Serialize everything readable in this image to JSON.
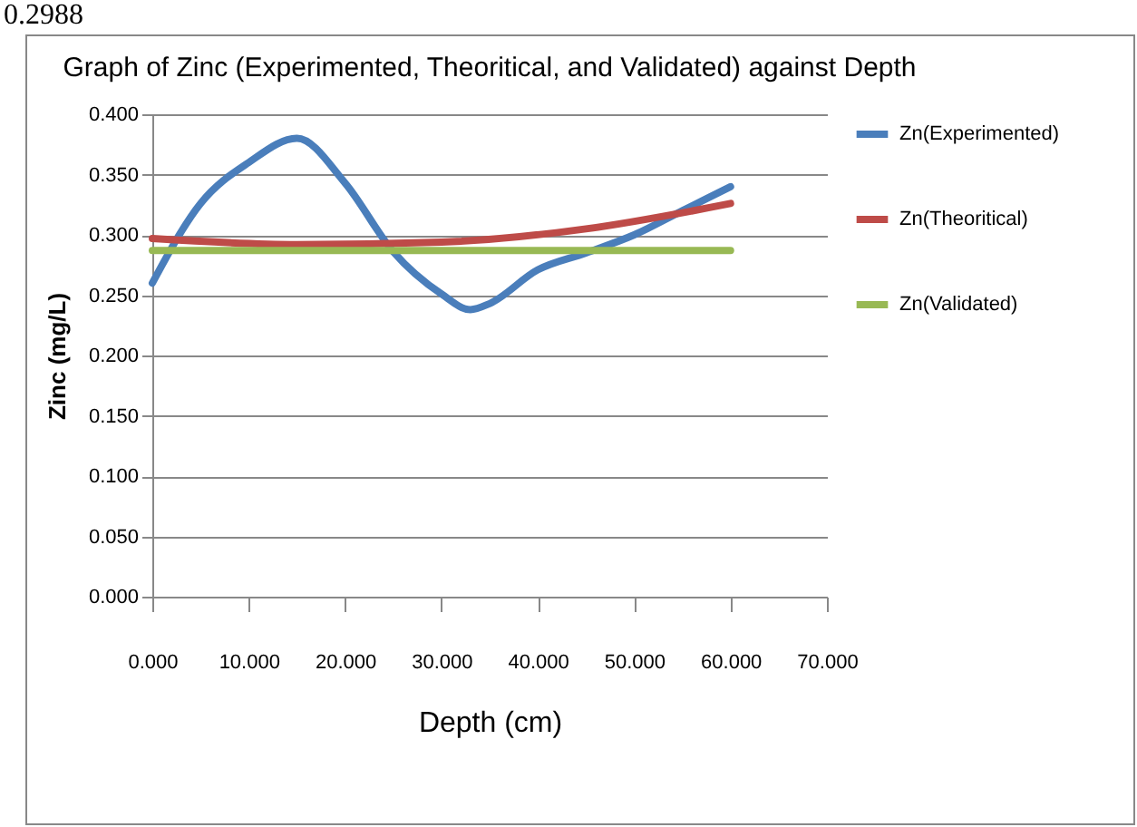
{
  "chart_data": {
    "type": "line",
    "title": "Graph of Zinc (Experimented, Theoritical, and Validated) against Depth",
    "xlabel": "Depth (cm)",
    "ylabel": "Zinc  (mg/L)",
    "annotations": [
      "0.2988"
    ],
    "series": [
      {
        "name": "Zn(Experimented)",
        "color": "#4a7ebb",
        "x": [
          0,
          5,
          10,
          15,
          20,
          25,
          30,
          33,
          35,
          40,
          45,
          50,
          55,
          60
        ],
        "values": [
          0.26,
          0.326,
          0.36,
          0.38,
          0.343,
          0.286,
          0.251,
          0.238,
          0.243,
          0.271,
          0.285,
          0.3,
          0.32,
          0.34
        ]
      },
      {
        "name": "Zn(Theoritical)",
        "color": "#be4b48",
        "x": [
          0,
          15,
          30,
          45,
          60
        ],
        "values": [
          0.297,
          0.292,
          0.294,
          0.305,
          0.326
        ]
      },
      {
        "name": "Zn(Validated)",
        "color": "#98b954",
        "x": [
          0,
          60
        ],
        "values": [
          0.287,
          0.287
        ]
      }
    ],
    "xlim": [
      0,
      70
    ],
    "xticks": [
      {
        "value": 0,
        "label": "0.000"
      },
      {
        "value": 10,
        "label": "10.000"
      },
      {
        "value": 20,
        "label": "20.000"
      },
      {
        "value": 30,
        "label": "30.000"
      },
      {
        "value": 40,
        "label": "40.000"
      },
      {
        "value": 50,
        "label": "50.000"
      },
      {
        "value": 60,
        "label": "60.000"
      },
      {
        "value": 70,
        "label": "70.000"
      }
    ],
    "ylim": [
      0,
      0.4
    ],
    "yticks": [
      {
        "value": 0,
        "label": "0.000"
      },
      {
        "value": 0.05,
        "label": "0.050"
      },
      {
        "value": 0.1,
        "label": "0.100"
      },
      {
        "value": 0.15,
        "label": "0.150"
      },
      {
        "value": 0.2,
        "label": "0.200"
      },
      {
        "value": 0.25,
        "label": "0.250"
      },
      {
        "value": 0.3,
        "label": "0.300"
      },
      {
        "value": 0.35,
        "label": "0.350"
      },
      {
        "value": 0.4,
        "label": "0.400"
      }
    ],
    "grid": "y",
    "legend": "right",
    "marker": "none",
    "line_style": "solid"
  }
}
